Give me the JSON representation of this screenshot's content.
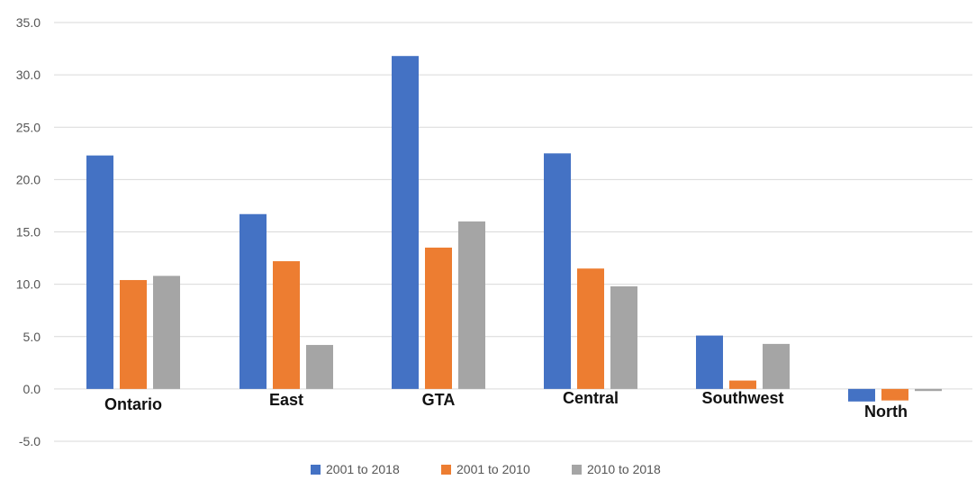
{
  "chart_data": {
    "type": "bar",
    "categories": [
      "Ontario",
      "East",
      "GTA",
      "Central",
      "Southwest",
      "North"
    ],
    "series": [
      {
        "name": "2001 to 2018",
        "color": "#4472C4",
        "values": [
          22.3,
          16.7,
          31.8,
          22.5,
          5.1,
          -1.2
        ]
      },
      {
        "name": "2001 to 2010",
        "color": "#ED7D31",
        "values": [
          10.4,
          12.2,
          13.5,
          11.5,
          0.8,
          -1.1
        ]
      },
      {
        "name": "2010 to 2018",
        "color": "#A5A5A5",
        "values": [
          10.8,
          4.2,
          16.0,
          9.8,
          4.3,
          -0.2
        ]
      }
    ],
    "ylim": [
      -5,
      35
    ],
    "yticks": [
      -5.0,
      0.0,
      5.0,
      10.0,
      15.0,
      20.0,
      25.0,
      30.0,
      35.0
    ],
    "ytick_labels": [
      "-5.0",
      "0.0",
      "5.0",
      "10.0",
      "15.0",
      "20.0",
      "25.0",
      "30.0",
      "35.0"
    ],
    "grid": true,
    "legend_position": "bottom"
  }
}
